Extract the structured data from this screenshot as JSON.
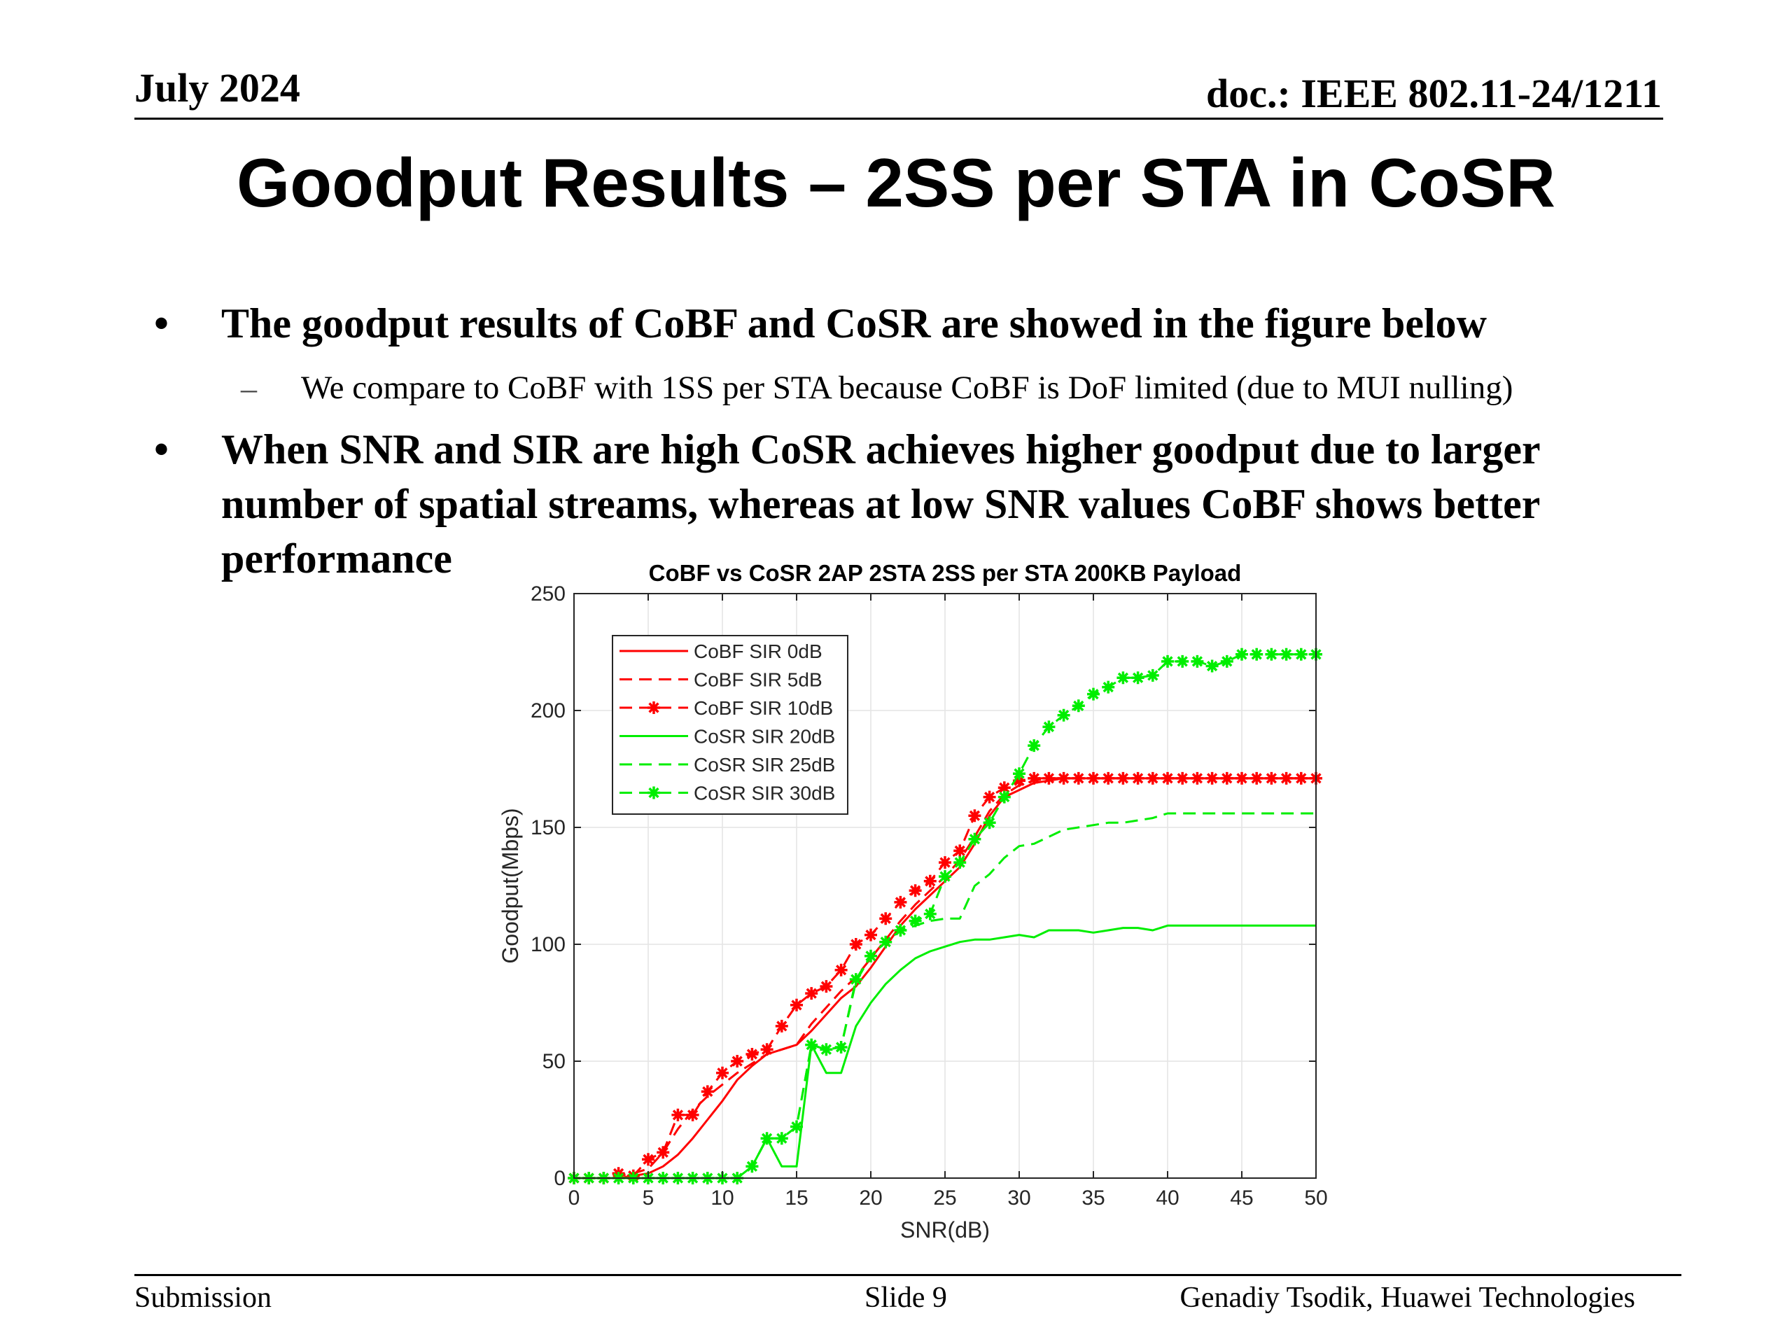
{
  "header": {
    "date": "July 2024",
    "doc": "doc.: IEEE 802.11-24/1211"
  },
  "slide_title": "Goodput Results – 2SS per STA in CoSR",
  "bullets": [
    {
      "symbol": "•",
      "text": "The goodput results of CoBF and CoSR are showed in the figure below"
    },
    {
      "symbol": "•",
      "text": "When SNR and SIR are high CoSR achieves higher goodput due to larger number of spatial streams, whereas at low SNR values CoBF shows better performance"
    }
  ],
  "sub_bullets": [
    {
      "symbol": "–",
      "text": "We compare to CoBF with 1SS per STA because CoBF is DoF limited (due to MUI nulling)"
    }
  ],
  "footer": {
    "left": "Submission",
    "center": "Slide 9",
    "right": "Genadiy Tsodik, Huawei Technologies"
  },
  "chart_data": {
    "type": "line",
    "title": "CoBF vs CoSR 2AP 2STA 2SS per STA 200KB Payload",
    "xlabel": "SNR(dB)",
    "ylabel": "Goodput(Mbps)",
    "xlim": [
      0,
      50
    ],
    "ylim": [
      0,
      250
    ],
    "xticks": [
      0,
      5,
      10,
      15,
      20,
      25,
      30,
      35,
      40,
      45,
      50
    ],
    "yticks": [
      0,
      50,
      100,
      150,
      200,
      250
    ],
    "grid": true,
    "legend_position": "top-left",
    "x": [
      0,
      1,
      2,
      3,
      4,
      5,
      6,
      7,
      8,
      9,
      10,
      11,
      12,
      13,
      14,
      15,
      16,
      17,
      18,
      19,
      20,
      21,
      22,
      23,
      24,
      25,
      26,
      27,
      28,
      29,
      30,
      31,
      32,
      33,
      34,
      35,
      36,
      37,
      38,
      39,
      40,
      41,
      42,
      43,
      44,
      45,
      46,
      47,
      48,
      49,
      50
    ],
    "series": [
      {
        "name": "CoBF SIR 0dB",
        "color": "#ff0000",
        "style": "solid",
        "marker": "none",
        "values": [
          0,
          0,
          0,
          0,
          1,
          2,
          5,
          10,
          17,
          25,
          33,
          42,
          48,
          53,
          55,
          57,
          63,
          70,
          77,
          82,
          90,
          99,
          108,
          115,
          121,
          127,
          133,
          143,
          155,
          163,
          166,
          169,
          170,
          171,
          171,
          171,
          171,
          171,
          171,
          171,
          171,
          171,
          171,
          171,
          171,
          171,
          171,
          171,
          171,
          171,
          171
        ]
      },
      {
        "name": "CoBF SIR 5dB",
        "color": "#ff0000",
        "style": "dashed",
        "marker": "none",
        "values": [
          0,
          0,
          0,
          1,
          2,
          4,
          11,
          21,
          29,
          35,
          40,
          45,
          49,
          53,
          55,
          57,
          66,
          73,
          80,
          86,
          94,
          102,
          110,
          117,
          123,
          129,
          136,
          146,
          157,
          164,
          168,
          170,
          171,
          171,
          171,
          171,
          171,
          171,
          171,
          171,
          171,
          171,
          171,
          171,
          171,
          171,
          171,
          171,
          171,
          171,
          171
        ]
      },
      {
        "name": "CoBF SIR 10dB",
        "color": "#ff0000",
        "style": "dashed",
        "marker": "star",
        "values": [
          0,
          0,
          0,
          2,
          1,
          8,
          11,
          27,
          27,
          37,
          45,
          50,
          53,
          55,
          65,
          74,
          79,
          82,
          89,
          100,
          104,
          111,
          118,
          123,
          127,
          135,
          140,
          155,
          163,
          167,
          170,
          171,
          171,
          171,
          171,
          171,
          171,
          171,
          171,
          171,
          171,
          171,
          171,
          171,
          171,
          171,
          171,
          171,
          171,
          171,
          171
        ]
      },
      {
        "name": "CoSR SIR 20dB",
        "color": "#00ee00",
        "style": "solid",
        "marker": "none",
        "values": [
          0,
          0,
          0,
          0,
          0,
          0,
          0,
          0,
          0,
          0,
          0,
          0,
          5,
          17,
          5,
          5,
          57,
          45,
          45,
          65,
          75,
          83,
          89,
          94,
          97,
          99,
          101,
          102,
          102,
          103,
          104,
          103,
          106,
          106,
          106,
          105,
          106,
          107,
          107,
          106,
          108,
          108,
          108,
          108,
          108,
          108,
          108,
          108,
          108,
          108,
          108
        ]
      },
      {
        "name": "CoSR SIR 25dB",
        "color": "#00ee00",
        "style": "dashed",
        "marker": "none",
        "values": [
          0,
          0,
          0,
          0,
          0,
          0,
          0,
          0,
          0,
          0,
          0,
          0,
          5,
          17,
          17,
          22,
          57,
          55,
          56,
          84,
          95,
          101,
          106,
          108,
          110,
          111,
          111,
          125,
          130,
          137,
          142,
          143,
          146,
          149,
          150,
          151,
          152,
          152,
          153,
          154,
          156,
          156,
          156,
          156,
          156,
          156,
          156,
          156,
          156,
          156,
          156
        ]
      },
      {
        "name": "CoSR SIR 30dB",
        "color": "#00ee00",
        "style": "dashed",
        "marker": "star",
        "values": [
          0,
          0,
          0,
          0,
          0,
          0,
          0,
          0,
          0,
          0,
          0,
          0,
          5,
          17,
          17,
          22,
          57,
          55,
          56,
          85,
          95,
          101,
          106,
          110,
          113,
          129,
          135,
          145,
          152,
          163,
          173,
          185,
          193,
          198,
          202,
          207,
          210,
          214,
          214,
          215,
          221,
          221,
          221,
          219,
          221,
          224,
          224,
          224,
          224,
          224,
          224
        ]
      }
    ]
  }
}
